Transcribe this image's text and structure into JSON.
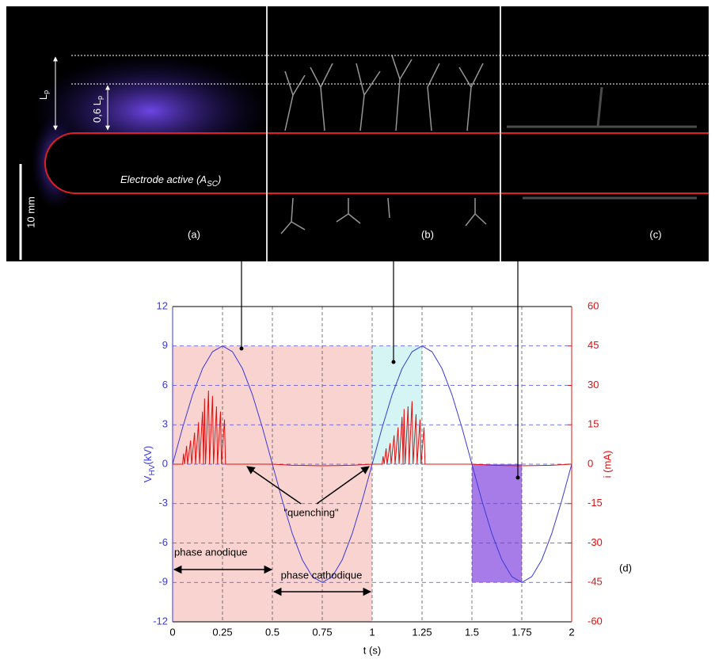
{
  "panels": {
    "labels": [
      "(a)",
      "(b)",
      "(c)"
    ],
    "lp": {
      "main": "L",
      "sub": "p"
    },
    "lp06": {
      "main": "0,6 L",
      "sub": "p"
    },
    "scale": "10 mm",
    "electrode": {
      "main": "Electrode active (A",
      "sub": "SC",
      "end": ")"
    }
  },
  "chart_data": {
    "type": "line",
    "xlabel": "t (s)",
    "ylabel": {
      "main": "V",
      "sub": "HV",
      "unit": "(kV)"
    },
    "y2label": "i (mA)",
    "xlim": [
      0,
      2
    ],
    "xticks": [
      0,
      0.25,
      0.5,
      0.75,
      1,
      1.25,
      1.5,
      1.75,
      2
    ],
    "ylim": [
      -12,
      12
    ],
    "yticks": [
      -12,
      -9,
      -6,
      -3,
      0,
      3,
      6,
      9,
      12
    ],
    "y2lim": [
      -60,
      60
    ],
    "y2ticks": [
      -60,
      -45,
      -30,
      -15,
      0,
      15,
      30,
      45,
      60
    ],
    "grid": true,
    "regions": [
      {
        "x": [
          0,
          1
        ],
        "y": [
          -12,
          9
        ],
        "color": "#f9d3d0"
      },
      {
        "x": [
          1,
          1.25
        ],
        "y": [
          0,
          9
        ],
        "color": "#d5f5f5"
      },
      {
        "x": [
          1.5,
          1.75
        ],
        "y": [
          -9,
          0
        ],
        "color": "#a77ce8"
      }
    ],
    "series": [
      {
        "name": "V",
        "color": "#3a3ad8",
        "x": [
          0,
          0.05,
          0.1,
          0.15,
          0.2,
          0.25,
          0.3,
          0.35,
          0.4,
          0.45,
          0.5,
          0.55,
          0.6,
          0.65,
          0.7,
          0.75,
          0.8,
          0.85,
          0.9,
          0.95,
          1,
          1.05,
          1.1,
          1.15,
          1.2,
          1.25,
          1.3,
          1.35,
          1.4,
          1.45,
          1.5,
          1.55,
          1.6,
          1.65,
          1.7,
          1.75,
          1.8,
          1.85,
          1.9,
          1.95,
          2
        ],
        "values": [
          0,
          2.78,
          5.29,
          7.28,
          8.56,
          9,
          8.56,
          7.28,
          5.29,
          2.78,
          0,
          -2.78,
          -5.29,
          -7.28,
          -8.56,
          -9,
          -8.56,
          -7.28,
          -5.29,
          -2.78,
          0,
          2.78,
          5.29,
          7.28,
          8.56,
          9,
          8.56,
          7.28,
          5.29,
          2.78,
          0,
          -2.78,
          -5.29,
          -7.28,
          -8.56,
          -9,
          -8.56,
          -7.28,
          -5.29,
          -2.78,
          0
        ]
      },
      {
        "name": "i",
        "color": "#e01010",
        "axis": "y2",
        "x": [
          0,
          0.05,
          0.055,
          0.06,
          0.07,
          0.075,
          0.09,
          0.095,
          0.11,
          0.115,
          0.13,
          0.135,
          0.15,
          0.155,
          0.16,
          0.165,
          0.18,
          0.185,
          0.2,
          0.205,
          0.22,
          0.225,
          0.24,
          0.245,
          0.26,
          0.265,
          0.5,
          0.6,
          0.75,
          0.9,
          1,
          1.05,
          1.055,
          1.06,
          1.07,
          1.075,
          1.09,
          1.095,
          1.11,
          1.115,
          1.13,
          1.135,
          1.15,
          1.155,
          1.16,
          1.165,
          1.18,
          1.185,
          1.2,
          1.205,
          1.22,
          1.225,
          1.24,
          1.245,
          1.26,
          1.265,
          1.5,
          1.6,
          1.75,
          1.9,
          2
        ],
        "values": [
          0,
          0,
          4,
          0,
          7,
          0,
          9,
          0,
          12,
          0,
          16,
          0,
          20,
          0,
          25,
          0,
          28,
          0,
          26,
          0,
          22,
          0,
          20,
          0,
          17,
          0,
          0,
          -0.4,
          -0.6,
          -0.4,
          0,
          0,
          3,
          0,
          6,
          0,
          8,
          0,
          11,
          0,
          14,
          0,
          18,
          0,
          21,
          0,
          22,
          0,
          24,
          0,
          19,
          0,
          17,
          0,
          14,
          0,
          0,
          -0.4,
          -0.6,
          -0.4,
          0
        ]
      }
    ],
    "annotations": {
      "quenching": "\"quenching\"",
      "anodic": "phase anodique",
      "cathodic": "phase cathodique",
      "panel": "(d)"
    }
  }
}
